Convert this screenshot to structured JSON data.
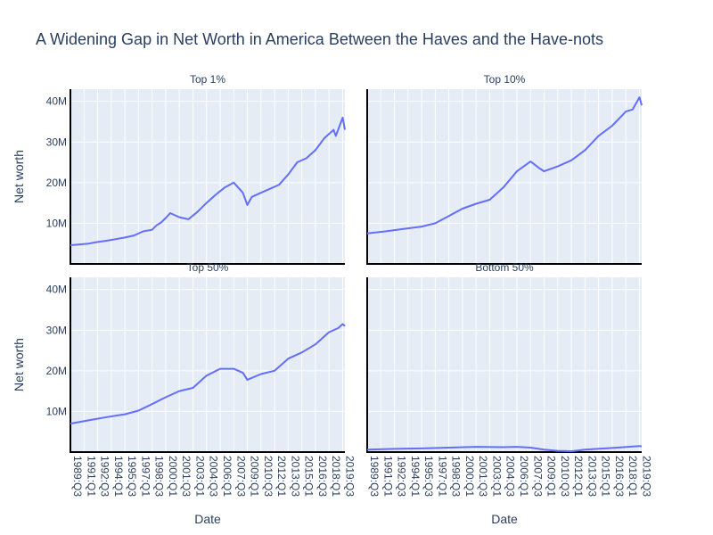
{
  "chart_data": {
    "type": "line",
    "title": "A Widening Gap in Net Worth in America Between the Haves and the Have-nots",
    "xlabel": "Date",
    "ylabel": "Net worth",
    "ylim": [
      0,
      43000000
    ],
    "y_ticks": [
      {
        "value": 10000000,
        "label": "10M"
      },
      {
        "value": 20000000,
        "label": "20M"
      },
      {
        "value": 30000000,
        "label": "30M"
      },
      {
        "value": 40000000,
        "label": "40M"
      }
    ],
    "x_ticks": [
      "1989:Q3",
      "1991:Q1",
      "1992:Q3",
      "1994:Q1",
      "1995:Q3",
      "1997:Q1",
      "1998:Q3",
      "2000:Q1",
      "2001:Q3",
      "2003:Q1",
      "2004:Q3",
      "2006:Q1",
      "2007:Q3",
      "2009:Q1",
      "2010:Q3",
      "2012:Q1",
      "2013:Q3",
      "2015:Q1",
      "2016:Q3",
      "2018:Q1",
      "2019:Q3"
    ],
    "panels": [
      {
        "title": "Top 1%",
        "points": [
          [
            "1989:Q3",
            4.6
          ],
          [
            "1990:Q3",
            4.8
          ],
          [
            "1991:Q3",
            5.0
          ],
          [
            "1992:Q3",
            5.4
          ],
          [
            "1993:Q3",
            5.7
          ],
          [
            "1994:Q3",
            6.1
          ],
          [
            "1995:Q3",
            6.5
          ],
          [
            "1996:Q3",
            7.0
          ],
          [
            "1997:Q3",
            8.0
          ],
          [
            "1998:Q3",
            8.4
          ],
          [
            "1999:Q1",
            9.5
          ],
          [
            "1999:Q3",
            10.2
          ],
          [
            "2000:Q1",
            11.3
          ],
          [
            "2000:Q3",
            12.5
          ],
          [
            "2001:Q3",
            11.5
          ],
          [
            "2002:Q3",
            11.0
          ],
          [
            "2003:Q3",
            12.8
          ],
          [
            "2004:Q3",
            15.0
          ],
          [
            "2005:Q3",
            17.0
          ],
          [
            "2006:Q3",
            18.8
          ],
          [
            "2007:Q3",
            20.0
          ],
          [
            "2008:Q3",
            17.5
          ],
          [
            "2009:Q1",
            14.5
          ],
          [
            "2009:Q3",
            16.5
          ],
          [
            "2010:Q3",
            17.5
          ],
          [
            "2011:Q3",
            18.5
          ],
          [
            "2012:Q3",
            19.5
          ],
          [
            "2013:Q3",
            22.0
          ],
          [
            "2014:Q3",
            25.0
          ],
          [
            "2015:Q3",
            26.0
          ],
          [
            "2016:Q3",
            28.0
          ],
          [
            "2017:Q3",
            31.0
          ],
          [
            "2018:Q3",
            33.0
          ],
          [
            "2018:Q4",
            31.5
          ],
          [
            "2019:Q3",
            36.0
          ],
          [
            "2019:Q4",
            33.0
          ]
        ]
      },
      {
        "title": "Top 10%",
        "points": [
          [
            "1989:Q3",
            7.5
          ],
          [
            "1991:Q3",
            8.0
          ],
          [
            "1993:Q3",
            8.6
          ],
          [
            "1995:Q3",
            9.2
          ],
          [
            "1997:Q1",
            10.0
          ],
          [
            "1998:Q3",
            11.8
          ],
          [
            "2000:Q1",
            13.6
          ],
          [
            "2001:Q3",
            14.8
          ],
          [
            "2003:Q1",
            15.8
          ],
          [
            "2004:Q3",
            18.8
          ],
          [
            "2006:Q1",
            22.8
          ],
          [
            "2007:Q3",
            25.2
          ],
          [
            "2008:Q3",
            23.5
          ],
          [
            "2009:Q1",
            22.8
          ],
          [
            "2010:Q3",
            24.0
          ],
          [
            "2012:Q1",
            25.5
          ],
          [
            "2013:Q3",
            28.0
          ],
          [
            "2015:Q1",
            31.5
          ],
          [
            "2016:Q3",
            34.0
          ],
          [
            "2018:Q1",
            37.5
          ],
          [
            "2018:Q4",
            38.0
          ],
          [
            "2019:Q3",
            41.0
          ],
          [
            "2019:Q4",
            39.0
          ]
        ]
      },
      {
        "title": "Top 50%",
        "points": [
          [
            "1989:Q3",
            7.0
          ],
          [
            "1991:Q3",
            7.8
          ],
          [
            "1993:Q3",
            8.6
          ],
          [
            "1995:Q3",
            9.3
          ],
          [
            "1997:Q1",
            10.2
          ],
          [
            "1998:Q3",
            11.8
          ],
          [
            "2000:Q1",
            13.5
          ],
          [
            "2001:Q3",
            15.0
          ],
          [
            "2003:Q1",
            15.8
          ],
          [
            "2004:Q3",
            18.8
          ],
          [
            "2006:Q1",
            20.5
          ],
          [
            "2007:Q3",
            20.5
          ],
          [
            "2008:Q3",
            19.5
          ],
          [
            "2009:Q1",
            17.8
          ],
          [
            "2010:Q3",
            19.2
          ],
          [
            "2012:Q1",
            20.0
          ],
          [
            "2013:Q3",
            23.0
          ],
          [
            "2015:Q1",
            24.5
          ],
          [
            "2016:Q3",
            26.5
          ],
          [
            "2018:Q1",
            29.5
          ],
          [
            "2019:Q1",
            30.5
          ],
          [
            "2019:Q3",
            31.5
          ],
          [
            "2019:Q4",
            31.0
          ]
        ]
      },
      {
        "title": "Bottom 50%",
        "points": [
          [
            "1989:Q3",
            0.6
          ],
          [
            "1992:Q3",
            0.8
          ],
          [
            "1995:Q3",
            0.9
          ],
          [
            "1998:Q3",
            1.1
          ],
          [
            "2001:Q3",
            1.3
          ],
          [
            "2004:Q3",
            1.2
          ],
          [
            "2006:Q1",
            1.3
          ],
          [
            "2007:Q3",
            1.1
          ],
          [
            "2009:Q1",
            0.6
          ],
          [
            "2010:Q3",
            0.3
          ],
          [
            "2012:Q1",
            0.2
          ],
          [
            "2013:Q3",
            0.6
          ],
          [
            "2016:Q3",
            1.0
          ],
          [
            "2019:Q3",
            1.5
          ],
          [
            "2019:Q4",
            1.4
          ]
        ]
      }
    ],
    "line_color": "#636efa",
    "plot_bg": "#e5ecf6",
    "grid": true
  }
}
